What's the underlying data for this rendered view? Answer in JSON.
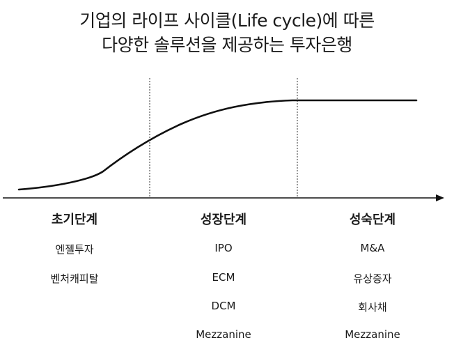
{
  "title": {
    "line1": "기업의 라이프 사이클(Life cycle)에 따른",
    "line2": "다양한 솔루션을 제공하는 투자은행"
  },
  "colors": {
    "curve": "#111111",
    "axis": "#111111",
    "divider": "#333333",
    "text": "#1a1a1a"
  },
  "stages": [
    {
      "name": "초기단계",
      "items": [
        "엔젤투자",
        "벤처캐피탈"
      ]
    },
    {
      "name": "성장단계",
      "items": [
        "IPO",
        "ECM",
        "DCM",
        "Mezzanine"
      ]
    },
    {
      "name": "성숙단계",
      "items": [
        "M&A",
        "유상증자",
        "회사채",
        "Mezzanine"
      ]
    }
  ]
}
